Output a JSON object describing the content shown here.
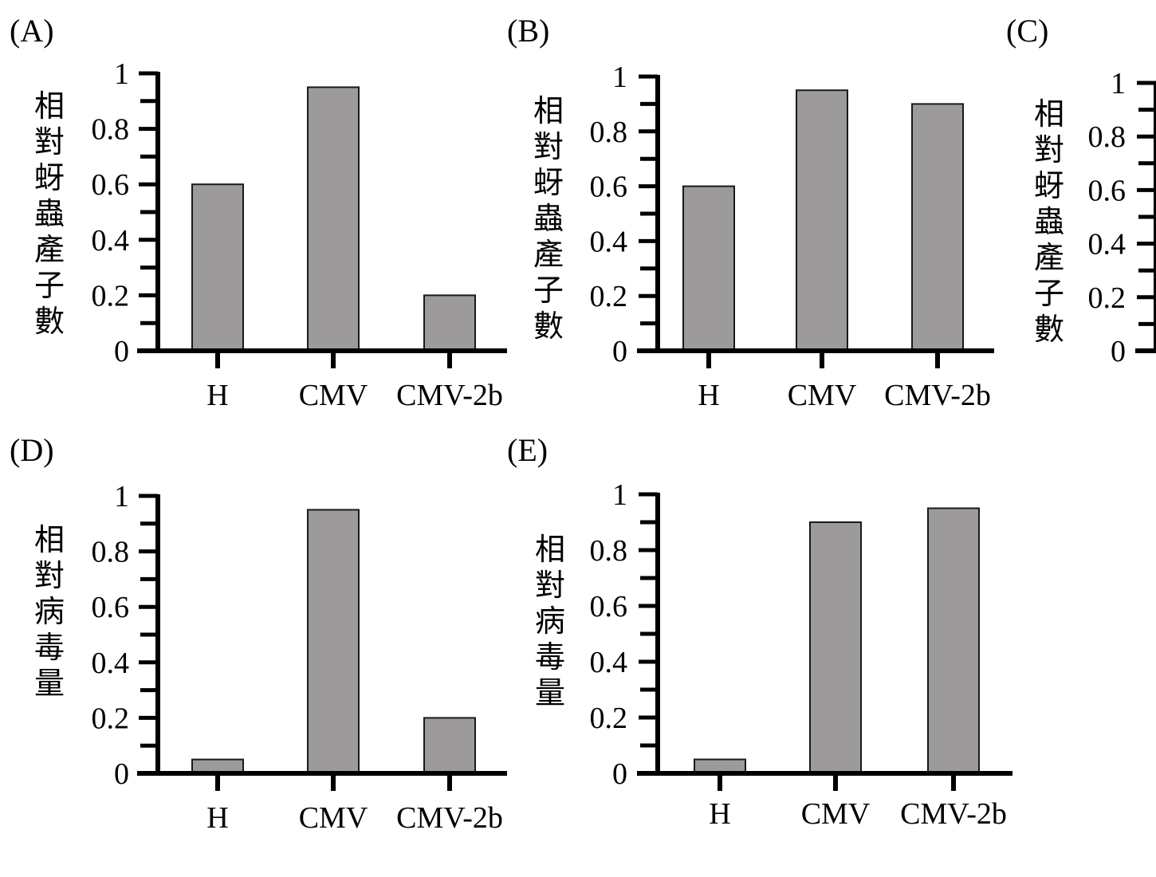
{
  "chart_data": [
    {
      "type": "bar",
      "panel_label": "(A)",
      "categories": [
        "H",
        "CMV",
        "CMV-2b"
      ],
      "values": [
        0.6,
        0.95,
        0.2
      ],
      "ylabel": "相對蚜蟲產子數",
      "yticks": [
        "0",
        "0.2",
        "0.4",
        "0.6",
        "0.8",
        "1"
      ],
      "ylim": [
        0,
        1
      ],
      "bar_color": "#9c9a9a",
      "grid": false
    },
    {
      "type": "bar",
      "panel_label": "(B)",
      "categories": [
        "H",
        "CMV",
        "CMV-2b"
      ],
      "values": [
        0.6,
        0.95,
        0.9
      ],
      "ylabel": "相對蚜蟲產子數",
      "yticks": [
        "0",
        "0.2",
        "0.4",
        "0.6",
        "0.8",
        "1"
      ],
      "ylim": [
        0,
        1
      ],
      "bar_color": "#9c9a9a",
      "grid": false
    },
    {
      "type": "bar",
      "panel_label": "(C)",
      "categories": [],
      "values": [],
      "ylabel": "相對蚜蟲產子數",
      "yticks": [
        "0",
        "0.2",
        "0.4",
        "0.6",
        "0.8",
        "1"
      ],
      "ylim": [
        0,
        1
      ],
      "bar_color": "#9c9a9a",
      "grid": false
    },
    {
      "type": "bar",
      "panel_label": "(D)",
      "categories": [
        "H",
        "CMV",
        "CMV-2b"
      ],
      "values": [
        0.05,
        0.95,
        0.2
      ],
      "ylabel": "相對病毒量",
      "yticks": [
        "0",
        "0.2",
        "0.4",
        "0.6",
        "0.8",
        "1"
      ],
      "ylim": [
        0,
        1
      ],
      "bar_color": "#9c9a9a",
      "grid": false
    },
    {
      "type": "bar",
      "panel_label": "(E)",
      "categories": [
        "H",
        "CMV",
        "CMV-2b"
      ],
      "values": [
        0.05,
        0.9,
        0.95
      ],
      "ylabel": "相對病毒量",
      "yticks": [
        "0",
        "0.2",
        "0.4",
        "0.6",
        "0.8",
        "1"
      ],
      "ylim": [
        0,
        1
      ],
      "bar_color": "#9c9a9a",
      "grid": false
    }
  ]
}
